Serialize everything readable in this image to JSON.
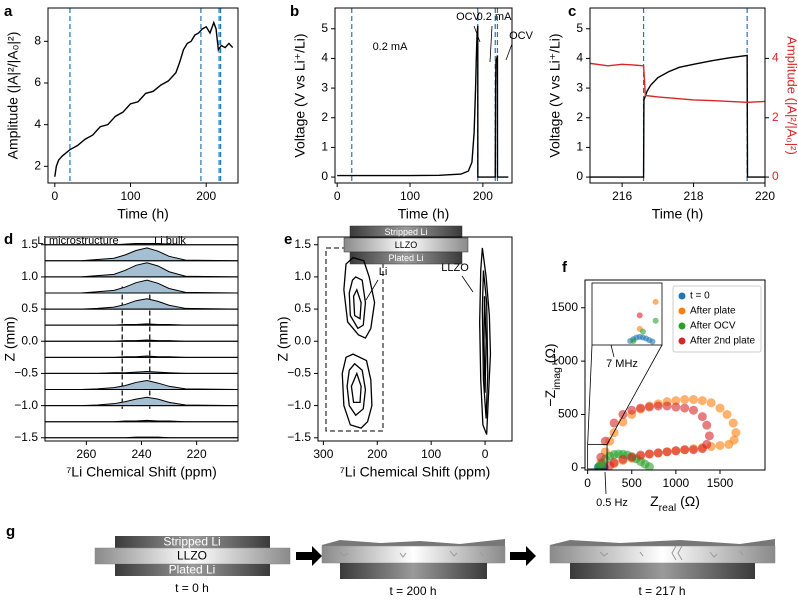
{
  "chart_data": [
    {
      "label": "a",
      "type": "line",
      "xlabel": "Time (h)",
      "ylabel": "Amplitude (|A|²/|A₀|²)",
      "xlim": [
        -9,
        242
      ],
      "ylim": [
        1.2,
        9.6
      ],
      "xticks": [
        0,
        100,
        200
      ],
      "yticks": [
        2,
        4,
        6,
        8
      ],
      "vlines": [
        20,
        193,
        217,
        219
      ],
      "vline_color": "#1f77b4",
      "series": [
        {
          "color": "#000000",
          "x": [
            0,
            2,
            5,
            10,
            20,
            30,
            40,
            50,
            60,
            70,
            80,
            90,
            100,
            110,
            120,
            130,
            140,
            150,
            160,
            165,
            170,
            175,
            180,
            185,
            190,
            195,
            200,
            205,
            210,
            213,
            216,
            220,
            225,
            230,
            235
          ],
          "y": [
            1.5,
            2.0,
            2.3,
            2.5,
            2.8,
            3.0,
            3.3,
            3.5,
            3.9,
            4.0,
            4.4,
            4.6,
            5.0,
            5.1,
            5.5,
            5.6,
            5.9,
            6.1,
            6.5,
            7.0,
            7.6,
            7.9,
            8.0,
            8.3,
            8.4,
            8.6,
            8.7,
            8.4,
            8.9,
            8.6,
            7.6,
            7.8,
            7.7,
            7.9,
            7.7
          ]
        }
      ]
    },
    {
      "label": "b",
      "type": "line",
      "xlabel": "Time (h)",
      "ylabel": "Voltage (V vs Li⁺/Li)",
      "xlim": [
        -3,
        240
      ],
      "ylim": [
        -0.2,
        5.7
      ],
      "xticks": [
        0,
        100,
        200
      ],
      "yticks": [
        0,
        1,
        2,
        3,
        4,
        5
      ],
      "vlines": [
        20,
        193,
        217,
        220
      ],
      "vline_color": "#1f77b4",
      "annotations": [
        "0.2 mA",
        "OCV",
        "0.2 mA",
        "OCV"
      ],
      "series": [
        {
          "color": "#000000",
          "x": [
            0,
            20,
            60,
            100,
            140,
            170,
            180,
            185,
            188,
            190,
            191,
            192,
            193,
            193.1,
            217,
            217.5,
            218,
            219,
            219.5,
            220,
            220.1,
            235
          ],
          "y": [
            0.05,
            0.05,
            0.05,
            0.05,
            0.06,
            0.1,
            0.2,
            0.5,
            1.5,
            3.0,
            4.0,
            4.8,
            5.1,
            0,
            0,
            3.0,
            3.9,
            4.0,
            4.05,
            4.1,
            0,
            0
          ]
        }
      ]
    },
    {
      "label": "c",
      "type": "line",
      "xlabel": "Time (h)",
      "ylabel": "Voltage (V vs Li⁺/Li)",
      "y2label": "Amplitude (|A|²/|A₀|²)",
      "y2color": "#d62728",
      "xlim": [
        215.1,
        220
      ],
      "ylim": [
        -0.2,
        5.7
      ],
      "y2lim": [
        -0.2,
        5.7
      ],
      "xticks": [
        216,
        218,
        220
      ],
      "yticks": [
        0,
        1,
        2,
        3,
        4,
        5
      ],
      "y2ticks": [
        0,
        2,
        4
      ],
      "vlines": [
        216.6,
        219.5
      ],
      "vline_color": "#1f77b4",
      "series": [
        {
          "color": "#000000",
          "x": [
            215,
            216.6,
            216.61,
            216.7,
            216.8,
            217,
            217.3,
            217.6,
            218,
            218.5,
            219,
            219.5,
            219.51,
            220
          ],
          "y": [
            0,
            0,
            2.6,
            2.9,
            3.1,
            3.35,
            3.55,
            3.7,
            3.8,
            3.92,
            4.02,
            4.1,
            0,
            0
          ]
        },
        {
          "color": "#d62728",
          "axis": "y2",
          "x": [
            215,
            215.3,
            215.6,
            216,
            216.3,
            216.6,
            216.65,
            217,
            217.5,
            218,
            218.5,
            219,
            219.5,
            220
          ],
          "y": [
            3.85,
            3.8,
            3.75,
            3.8,
            3.78,
            3.75,
            2.75,
            2.7,
            2.65,
            2.6,
            2.58,
            2.55,
            2.52,
            2.55
          ]
        }
      ]
    },
    {
      "label": "d",
      "type": "ridge",
      "xlabel": "⁷Li Chemical Shift (ppm)",
      "ylabel": "Z (mm)",
      "xlim": [
        275,
        205
      ],
      "ylim": [
        -1.55,
        1.62
      ],
      "xticks": [
        260,
        240,
        220
      ],
      "yticks": [
        {
          "value": -1.5,
          "label": "−1.5"
        },
        {
          "value": -1,
          "label": "−1.0"
        },
        {
          "value": -0.5,
          "label": "−0.5"
        },
        {
          "value": 0,
          "label": "0.0"
        },
        {
          "value": 0.5,
          "label": "0.5"
        },
        {
          "value": 1,
          "label": "1.0"
        },
        {
          "value": 1.5,
          "label": "1.5"
        }
      ],
      "vlines": [
        247,
        237
      ],
      "vline_span": [
        -1.05,
        0.85
      ],
      "vline_color": "#000000",
      "annotations": [
        "Li microstructure",
        "Li bulk"
      ],
      "fill": "#a5bfd2",
      "x": [
        275,
        262,
        256,
        250,
        246,
        242,
        238,
        234,
        230,
        224,
        205
      ],
      "traces": [
        {
          "z": 1.5,
          "values": [
            0,
            0,
            0,
            0,
            0.01,
            0.02,
            0.02,
            0.02,
            0.01,
            0,
            0
          ]
        },
        {
          "z": 1.25,
          "values": [
            0,
            0,
            0.02,
            0.04,
            0.09,
            0.16,
            0.2,
            0.15,
            0.07,
            0.01,
            0
          ]
        },
        {
          "z": 1.0,
          "values": [
            0,
            0,
            0.02,
            0.04,
            0.1,
            0.18,
            0.22,
            0.17,
            0.08,
            0.01,
            0
          ]
        },
        {
          "z": 0.75,
          "values": [
            0,
            0,
            0.02,
            0.04,
            0.09,
            0.16,
            0.2,
            0.15,
            0.07,
            0.01,
            0
          ]
        },
        {
          "z": 0.5,
          "values": [
            0,
            0,
            0.01,
            0.03,
            0.07,
            0.13,
            0.16,
            0.12,
            0.06,
            0.01,
            0
          ]
        },
        {
          "z": 0.25,
          "values": [
            0,
            0,
            0,
            0,
            0.01,
            0.01,
            0.02,
            0.01,
            0.01,
            0,
            0
          ]
        },
        {
          "z": 0,
          "values": [
            0,
            0,
            0,
            0,
            0.01,
            0.01,
            0.02,
            0.01,
            0.01,
            0,
            0
          ]
        },
        {
          "z": -0.25,
          "values": [
            0,
            0,
            0,
            0,
            0.01,
            0.01,
            0.02,
            0.01,
            0.01,
            0,
            0
          ]
        },
        {
          "z": -0.5,
          "values": [
            0,
            0,
            0,
            0.01,
            0.01,
            0.02,
            0.03,
            0.02,
            0.01,
            0,
            0
          ]
        },
        {
          "z": -0.75,
          "values": [
            0,
            0,
            0.01,
            0.03,
            0.06,
            0.11,
            0.14,
            0.1,
            0.05,
            0.01,
            0
          ]
        },
        {
          "z": -1.0,
          "values": [
            0,
            0,
            0.01,
            0.03,
            0.06,
            0.1,
            0.13,
            0.1,
            0.05,
            0.01,
            0
          ]
        },
        {
          "z": -1.25,
          "values": [
            0,
            0,
            0,
            0,
            0.01,
            0.01,
            0.02,
            0.01,
            0.01,
            0,
            0
          ]
        },
        {
          "z": -1.5,
          "values": [
            0,
            0,
            0,
            0,
            0,
            0.01,
            0.01,
            0.01,
            0,
            0,
            0
          ]
        }
      ]
    },
    {
      "label": "e",
      "type": "contour",
      "xlabel": "⁷Li Chemical Shift (ppm)",
      "ylabel": "Z (mm)",
      "xlim": [
        310,
        -50
      ],
      "ylim": [
        -1.55,
        1.62
      ],
      "xticks": [
        300,
        200,
        100,
        0
      ],
      "yticks": [
        {
          "value": -1.5,
          "label": "−1.5"
        },
        {
          "value": -1,
          "label": "−1.0"
        },
        {
          "value": -0.5,
          "label": "−0.5"
        },
        {
          "value": 0,
          "label": "0.0"
        },
        {
          "value": 0.5,
          "label": "0.5"
        },
        {
          "value": 1,
          "label": "1.0"
        },
        {
          "value": 1.5,
          "label": "1.5"
        }
      ],
      "annotations": [
        "Li",
        "LLZO"
      ],
      "stack": [
        "Stripped Li",
        "LLZO",
        "Plated Li"
      ],
      "color": "#000000",
      "contours": [
        {
          "x": [
            245,
            225,
            215,
            205,
            212,
            222,
            235,
            255,
            262,
            258
          ],
          "y": [
            1.3,
            1.25,
            1.0,
            0.6,
            0.2,
            0.05,
            0.1,
            0.3,
            0.8,
            1.2
          ]
        },
        {
          "x": [
            240,
            228,
            222,
            226,
            236,
            250,
            252,
            246
          ],
          "y": [
            1.0,
            0.95,
            0.6,
            0.25,
            0.2,
            0.4,
            0.75,
            0.95
          ]
        },
        {
          "x": [
            238,
            230,
            232,
            242,
            244
          ],
          "y": [
            0.8,
            0.6,
            0.35,
            0.4,
            0.7
          ]
        },
        {
          "x": [
            245,
            220,
            212,
            210,
            218,
            230,
            250,
            262,
            265,
            258
          ],
          "y": [
            -0.2,
            -0.3,
            -0.6,
            -1.0,
            -1.25,
            -1.35,
            -1.3,
            -1.0,
            -0.5,
            -0.25
          ]
        },
        {
          "x": [
            242,
            228,
            222,
            226,
            240,
            252,
            256,
            252
          ],
          "y": [
            -0.35,
            -0.45,
            -0.75,
            -1.05,
            -1.15,
            -1.0,
            -0.7,
            -0.45
          ]
        },
        {
          "x": [
            238,
            230,
            232,
            244,
            248
          ],
          "y": [
            -0.5,
            -0.7,
            -0.95,
            -0.95,
            -0.7
          ]
        },
        {
          "x": [
            5,
            -2,
            -8,
            -10,
            -6,
            -3,
            4,
            8,
            10,
            8
          ],
          "y": [
            1.45,
            1.0,
            0.4,
            -0.2,
            -0.9,
            -1.45,
            -1.3,
            -0.6,
            0.3,
            1.1
          ]
        },
        {
          "x": [
            3,
            -3,
            -5,
            -2,
            3,
            5
          ],
          "y": [
            1.1,
            0.6,
            -0.5,
            -1.2,
            -0.6,
            0.5
          ]
        },
        {
          "x": [
            1,
            -2,
            0,
            2
          ],
          "y": [
            0.7,
            0,
            -0.8,
            0
          ]
        }
      ]
    },
    {
      "label": "f",
      "type": "scatter",
      "xlabel": [
        "Z",
        "real",
        " (Ω)"
      ],
      "ylabel": [
        "−Z",
        "imag",
        " (Ω)"
      ],
      "xlim": [
        -30,
        2010
      ],
      "ylim": [
        -20,
        1760
      ],
      "xticks": [
        0,
        500,
        1000,
        1500
      ],
      "yticks": [
        0,
        500,
        1000,
        1500
      ],
      "legend": "upper right",
      "annotations": [
        "7 MHz",
        "0.5 Hz"
      ],
      "inset": {
        "xlim": [
          0,
          220
        ],
        "ylim": [
          -10,
          220
        ]
      },
      "series": [
        {
          "name": "t = 0",
          "color": "#1f77b4",
          "x": [
            120,
            130,
            140,
            150,
            160,
            170,
            180,
            190
          ],
          "y": [
            5,
            12,
            18,
            20,
            18,
            14,
            8,
            3
          ]
        },
        {
          "name": "After plate",
          "color": "#ff7f0e",
          "x": [
            150,
            200,
            250,
            300,
            400,
            500,
            600,
            700,
            800,
            900,
            1000,
            1100,
            1200,
            1300,
            1400,
            1500,
            1580,
            1650,
            1680,
            1660,
            1600,
            1500,
            1400,
            1300,
            1200,
            1100,
            1000,
            900,
            800,
            700,
            600,
            500,
            400,
            300
          ],
          "y": [
            50,
            150,
            250,
            330,
            430,
            500,
            550,
            580,
            600,
            620,
            630,
            640,
            640,
            630,
            610,
            560,
            500,
            420,
            330,
            260,
            220,
            210,
            200,
            190,
            180,
            170,
            160,
            150,
            140,
            130,
            110,
            90,
            70,
            40
          ]
        },
        {
          "name": "After OCV",
          "color": "#2ca02c",
          "x": [
            130,
            160,
            200,
            250,
            300,
            350,
            400,
            450,
            500,
            550,
            600,
            650,
            700
          ],
          "y": [
            5,
            40,
            80,
            110,
            125,
            130,
            128,
            120,
            105,
            85,
            60,
            35,
            10
          ]
        },
        {
          "name": "After 2nd plate",
          "color": "#d62728",
          "x": [
            150,
            200,
            300,
            400,
            500,
            600,
            700,
            800,
            900,
            1000,
            1100,
            1200,
            1300,
            1350,
            1380,
            1350,
            1300,
            1200,
            1100,
            1000,
            900,
            800,
            700,
            600,
            500,
            400,
            300,
            250
          ],
          "y": [
            100,
            250,
            420,
            500,
            540,
            560,
            570,
            580,
            580,
            570,
            560,
            540,
            480,
            400,
            300,
            220,
            180,
            170,
            170,
            160,
            150,
            140,
            130,
            120,
            100,
            80,
            50,
            20
          ]
        }
      ]
    }
  ],
  "schematic": {
    "label": "g",
    "layers": [
      "Stripped Li",
      "LLZO",
      "Plated Li"
    ],
    "times": [
      "t = 0 h",
      "t = 200 h",
      "t = 217 h"
    ]
  }
}
